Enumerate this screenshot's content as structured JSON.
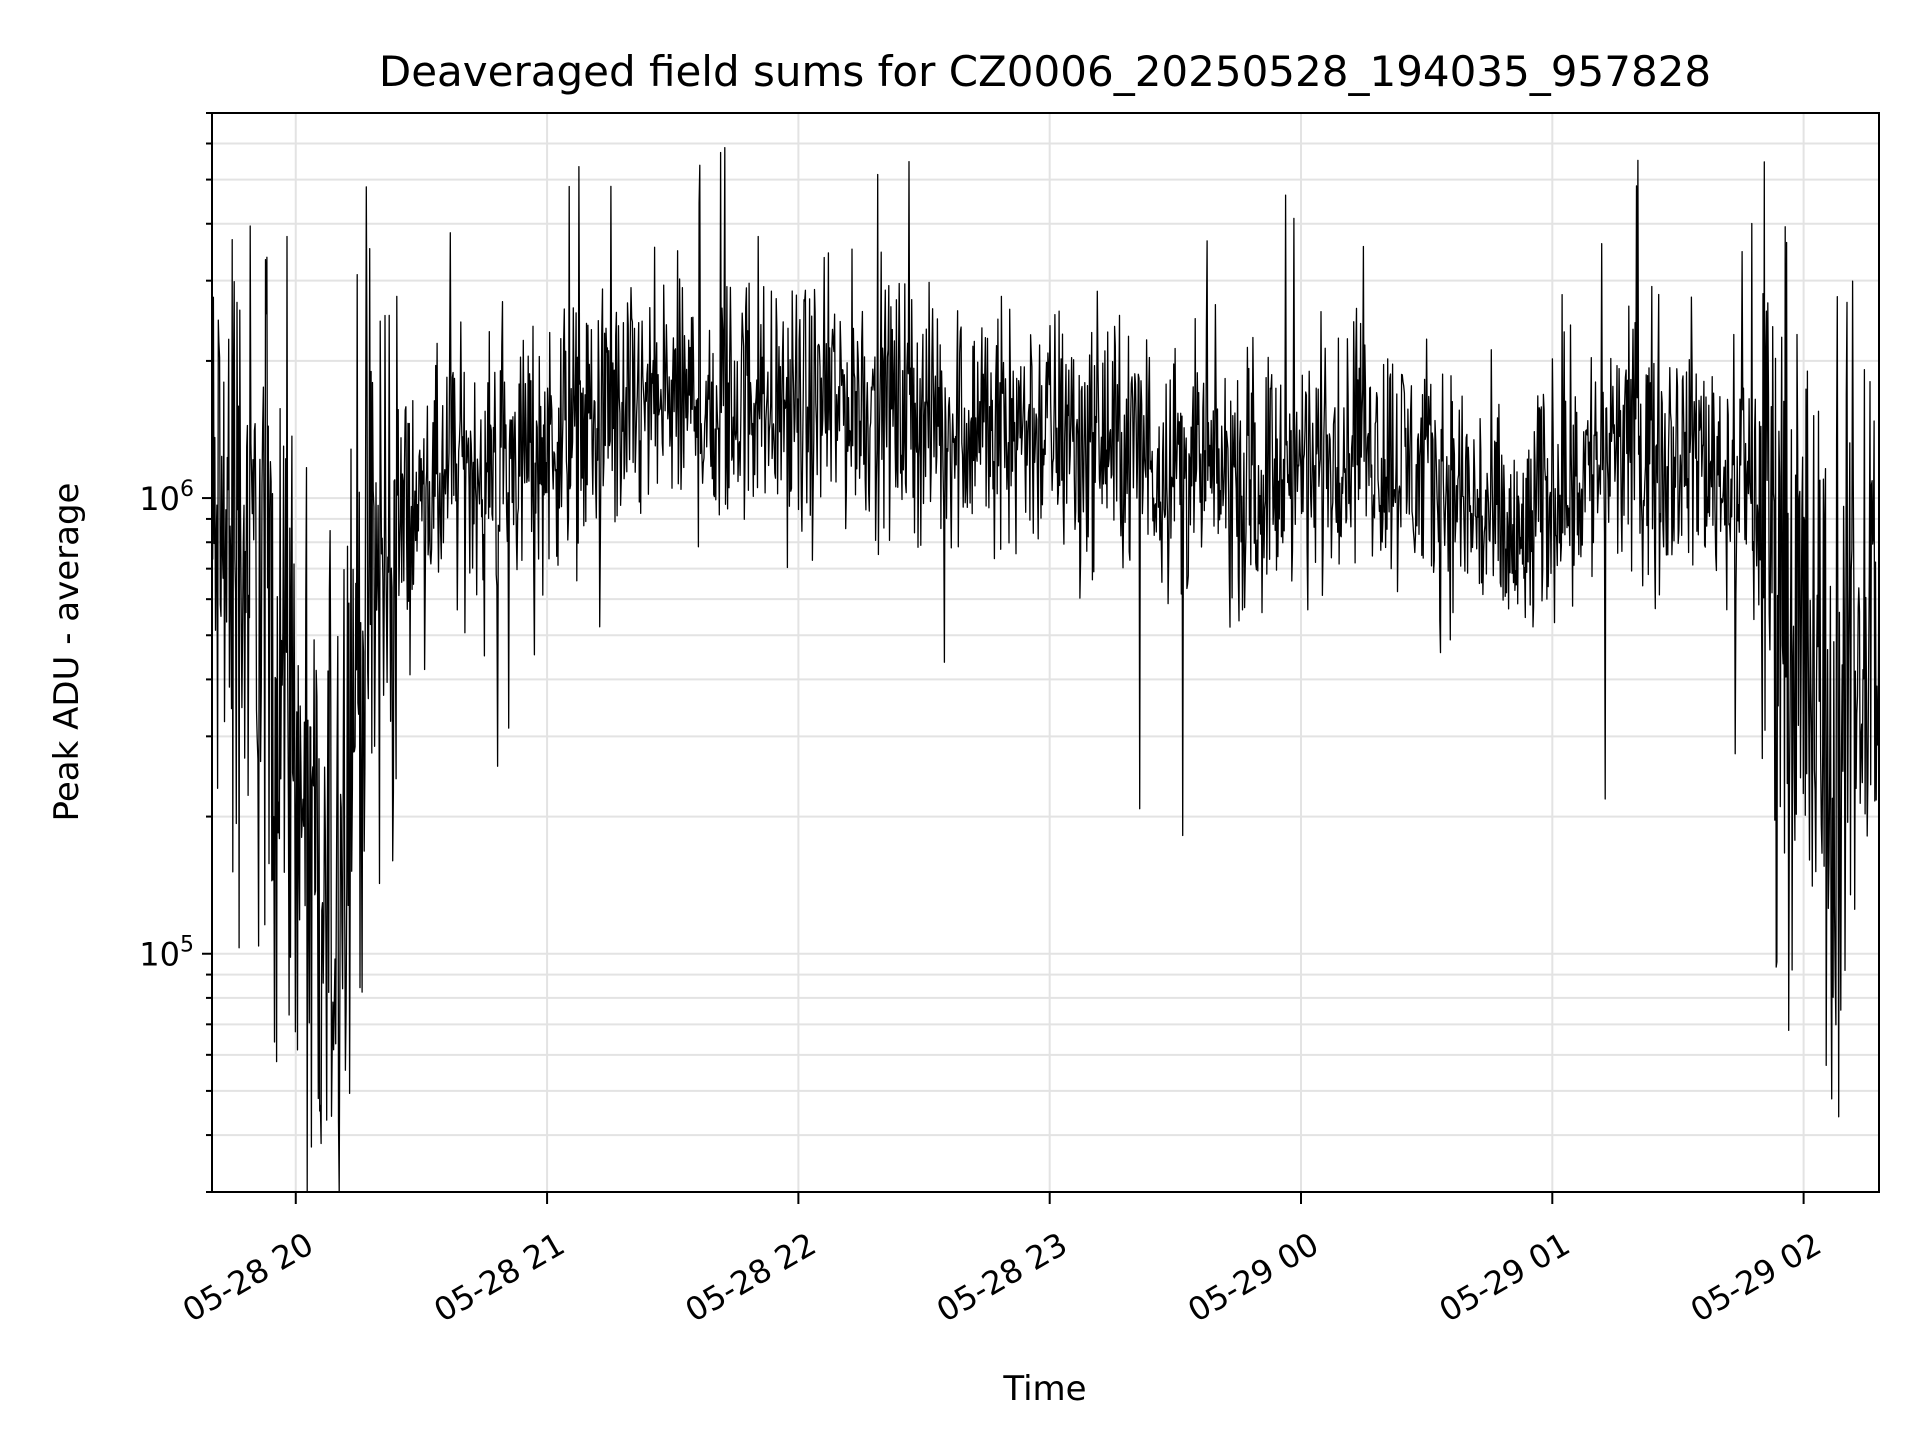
{
  "chart_data": {
    "type": "line",
    "title": "Deaveraged field sums for CZ0006_20250528_194035_957828",
    "xlabel": "Time",
    "ylabel": "Peak ADU - average",
    "yscale": "log",
    "ylim": [
      30000,
      7000000
    ],
    "xlim": [
      "2025-05-28 19:40",
      "2025-05-29 02:18"
    ],
    "x_ticks": [
      {
        "t": "2025-05-28 20:00",
        "label": "05-28 20"
      },
      {
        "t": "2025-05-28 21:00",
        "label": "05-28 21"
      },
      {
        "t": "2025-05-28 22:00",
        "label": "05-28 22"
      },
      {
        "t": "2025-05-28 23:00",
        "label": "05-28 23"
      },
      {
        "t": "2025-05-29 00:00",
        "label": "05-29 00"
      },
      {
        "t": "2025-05-29 01:00",
        "label": "05-29 01"
      },
      {
        "t": "2025-05-29 02:00",
        "label": "05-29 02"
      }
    ],
    "y_ticks": [
      {
        "value": 100000,
        "base": "10",
        "exp": "5"
      },
      {
        "value": 1000000,
        "base": "10",
        "exp": "6"
      }
    ],
    "grid": true,
    "series_color": "#000000",
    "series": [
      {
        "x": [
          "2025-05-28 19:40",
          "2025-05-28 19:46",
          "2025-05-28 19:52",
          "2025-05-28 19:58",
          "2025-05-28 20:01",
          "2025-05-28 20:04",
          "2025-05-28 20:06",
          "2025-05-28 20:08",
          "2025-05-28 20:10",
          "2025-05-28 20:14",
          "2025-05-28 20:20",
          "2025-05-28 20:26",
          "2025-05-28 20:34",
          "2025-05-28 20:44",
          "2025-05-28 20:55",
          "2025-05-28 21:06",
          "2025-05-28 21:18",
          "2025-05-28 21:30",
          "2025-05-28 21:40",
          "2025-05-28 21:50",
          "2025-05-28 22:00",
          "2025-05-28 22:12",
          "2025-05-28 22:24",
          "2025-05-28 22:36",
          "2025-05-28 22:48",
          "2025-05-28 23:00",
          "2025-05-28 23:12",
          "2025-05-28 23:24",
          "2025-05-28 23:36",
          "2025-05-28 23:48",
          "2025-05-29 00:00",
          "2025-05-29 00:12",
          "2025-05-29 00:24",
          "2025-05-29 00:36",
          "2025-05-29 00:44",
          "2025-05-29 00:52",
          "2025-05-29 01:00",
          "2025-05-29 01:12",
          "2025-05-29 01:24",
          "2025-05-29 01:36",
          "2025-05-29 01:46",
          "2025-05-29 01:54",
          "2025-05-29 02:00",
          "2025-05-29 02:04",
          "2025-05-29 02:08",
          "2025-05-29 02:12",
          "2025-05-29 02:18"
        ],
        "values": [
          700000,
          800000,
          600000,
          350000,
          200000,
          120000,
          90000,
          110000,
          180000,
          450000,
          650000,
          900000,
          1050000,
          1200000,
          1250000,
          1400000,
          1500000,
          1650000,
          1550000,
          1700000,
          1500000,
          1650000,
          1600000,
          1450000,
          1500000,
          1400000,
          1350000,
          1250000,
          1150000,
          1050000,
          1150000,
          1350000,
          1200000,
          1050000,
          900000,
          750000,
          1050000,
          1200000,
          1350000,
          1250000,
          1050000,
          800000,
          500000,
          300000,
          250000,
          400000,
          700000
        ]
      }
    ]
  }
}
